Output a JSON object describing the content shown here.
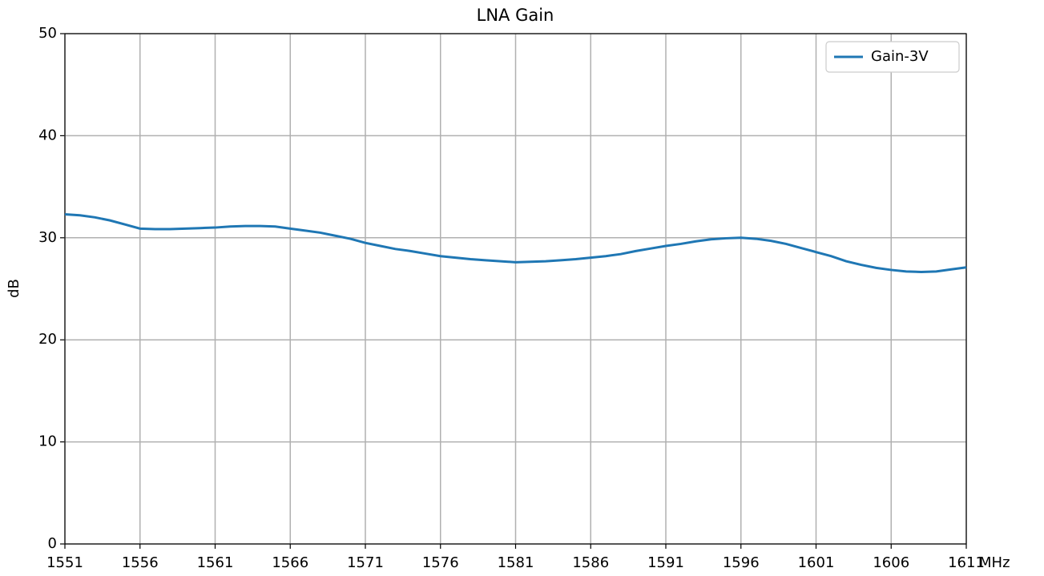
{
  "chart_data": {
    "type": "line",
    "title": "LNA Gain",
    "ylabel": "dB",
    "xlabel": "MHz",
    "x": [
      1551,
      1552,
      1553,
      1554,
      1555,
      1556,
      1557,
      1558,
      1559,
      1560,
      1561,
      1562,
      1563,
      1564,
      1565,
      1566,
      1567,
      1568,
      1569,
      1570,
      1571,
      1572,
      1573,
      1574,
      1575,
      1576,
      1577,
      1578,
      1579,
      1580,
      1581,
      1582,
      1583,
      1584,
      1585,
      1586,
      1587,
      1588,
      1589,
      1590,
      1591,
      1592,
      1593,
      1594,
      1595,
      1596,
      1597,
      1598,
      1599,
      1600,
      1601,
      1602,
      1603,
      1604,
      1605,
      1606,
      1607,
      1608,
      1609,
      1610,
      1611
    ],
    "series": [
      {
        "name": "Gain-3V",
        "color": "#1f77b4",
        "values": [
          32.3,
          32.2,
          32.0,
          31.7,
          31.3,
          30.9,
          30.85,
          30.85,
          30.9,
          30.95,
          31.0,
          31.1,
          31.15,
          31.15,
          31.1,
          30.9,
          30.7,
          30.5,
          30.2,
          29.9,
          29.5,
          29.2,
          28.9,
          28.7,
          28.45,
          28.2,
          28.05,
          27.9,
          27.8,
          27.7,
          27.6,
          27.65,
          27.7,
          27.8,
          27.9,
          28.05,
          28.2,
          28.4,
          28.7,
          28.95,
          29.2,
          29.4,
          29.65,
          29.85,
          29.95,
          30.0,
          29.9,
          29.7,
          29.4,
          29.0,
          28.6,
          28.2,
          27.7,
          27.35,
          27.05,
          26.85,
          26.7,
          26.65,
          26.7,
          26.9,
          27.1
        ]
      }
    ],
    "xlim": [
      1551,
      1611
    ],
    "xticks": [
      1551,
      1556,
      1561,
      1566,
      1571,
      1576,
      1581,
      1586,
      1591,
      1596,
      1601,
      1606,
      1611
    ],
    "ylim": [
      0,
      50
    ],
    "yticks": [
      0,
      10,
      20,
      30,
      40,
      50
    ],
    "grid": true,
    "legend": "upper right"
  }
}
